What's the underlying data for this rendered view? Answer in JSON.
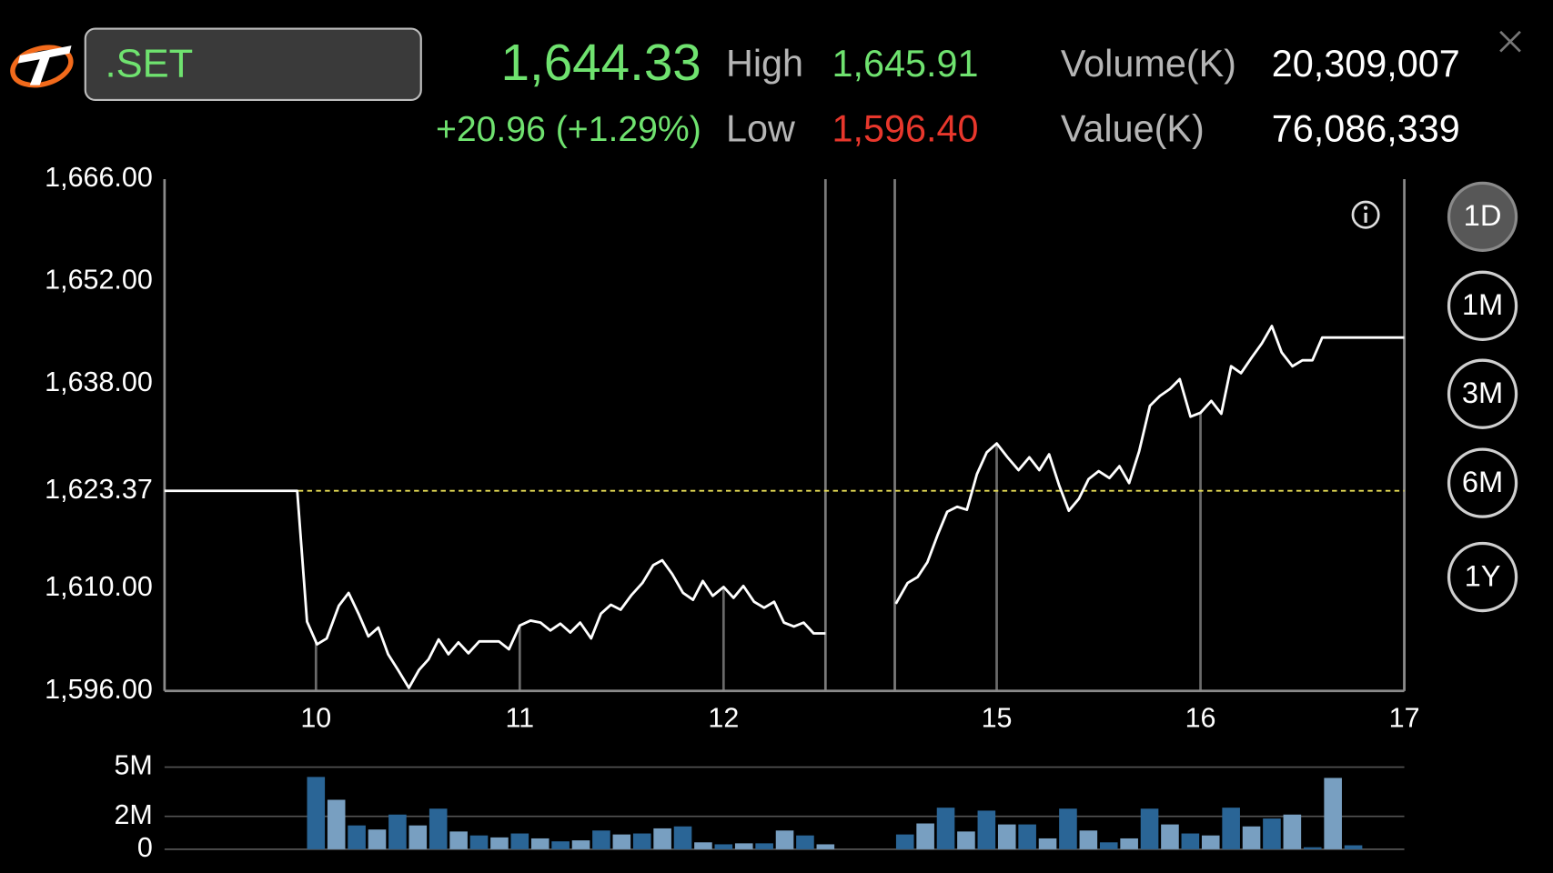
{
  "header": {
    "symbol": ".SET",
    "last": "1,644.33",
    "change": "+20.96 (+1.29%)",
    "high_label": "High",
    "high": "1,645.91",
    "low_label": "Low",
    "low": "1,596.40",
    "volume_label": "Volume(K)",
    "volume": "20,309,007",
    "value_label": "Value(K)",
    "value": "76,086,339"
  },
  "periods": {
    "options": [
      "1D",
      "1M",
      "3M",
      "6M",
      "1Y"
    ],
    "selected": 0
  },
  "chart_data": [
    {
      "type": "line",
      "color": "#ffffff",
      "x": [
        9.257,
        9.908,
        9.956,
        10.005,
        10.053,
        10.112,
        10.16,
        10.209,
        10.257,
        10.306,
        10.354,
        10.403,
        10.456,
        10.505,
        10.553,
        10.602,
        10.65,
        10.699,
        10.748,
        10.801,
        10.898,
        10.947,
        11.0,
        11.053,
        11.102,
        11.15,
        11.199,
        11.248,
        11.296,
        11.35,
        11.398,
        11.447,
        11.495,
        11.549,
        11.602,
        11.655,
        11.699,
        11.748,
        11.801,
        11.85,
        11.898,
        11.947,
        12.0,
        12.049,
        12.097,
        12.15,
        12.199,
        12.248,
        12.296,
        12.345,
        12.393,
        12.442,
        12.5,
        null,
        14.505,
        14.563,
        14.612,
        14.66,
        14.709,
        14.757,
        14.806,
        14.854,
        14.903,
        14.951,
        15.0,
        15.053,
        15.107,
        15.16,
        15.209,
        15.257,
        15.306,
        15.354,
        15.403,
        15.451,
        15.5,
        15.553,
        15.602,
        15.65,
        15.699,
        15.752,
        15.801,
        15.85,
        15.898,
        15.951,
        16.0,
        16.053,
        16.102,
        16.15,
        16.199,
        16.252,
        16.301,
        16.35,
        16.398,
        16.451,
        16.5,
        16.549,
        16.597,
        17
      ],
      "values": [
        1623.37,
        1623.37,
        1605.48,
        1602.37,
        1603.18,
        1607.65,
        1609.41,
        1606.56,
        1603.45,
        1604.67,
        1601.01,
        1598.85,
        1596.4,
        1598.85,
        1600.33,
        1603.04,
        1601.01,
        1602.64,
        1601.15,
        1602.77,
        1602.77,
        1601.69,
        1604.94,
        1605.61,
        1605.34,
        1604.26,
        1605.2,
        1603.99,
        1605.34,
        1603.18,
        1606.56,
        1607.78,
        1607.1,
        1609.14,
        1610.76,
        1613.2,
        1613.87,
        1611.98,
        1609.41,
        1608.46,
        1611.03,
        1609.0,
        1610.22,
        1608.73,
        1610.35,
        1608.19,
        1607.38,
        1608.19,
        1605.34,
        1604.8,
        1605.34,
        1603.86,
        1603.86,
        null,
        1607.92,
        1610.76,
        1611.57,
        1613.6,
        1617.26,
        1620.51,
        1621.19,
        1620.78,
        1625.65,
        1628.63,
        1629.85,
        1627.96,
        1626.2,
        1627.96,
        1626.2,
        1628.36,
        1624.16,
        1620.64,
        1622.27,
        1624.98,
        1626.06,
        1625.11,
        1626.74,
        1624.43,
        1628.77,
        1635.0,
        1636.35,
        1637.3,
        1638.65,
        1633.51,
        1634.05,
        1635.67,
        1633.91,
        1640.41,
        1639.46,
        1641.63,
        1643.53,
        1645.91,
        1642.31,
        1640.41,
        1641.22,
        1641.22,
        1644.33,
        1644.33
      ],
      "xlim": [
        9.257,
        17
      ],
      "xticks": [
        10,
        11,
        12,
        15,
        16,
        17
      ],
      "breaks": [
        [
          12.5,
          14.5
        ]
      ],
      "ylim": [
        1596,
        1666
      ],
      "yticks": [
        {
          "value": 1596,
          "label": "1,596.00"
        },
        {
          "value": 1610,
          "label": "1,610.00"
        },
        {
          "value": 1623.37,
          "label": "1,623.37"
        },
        {
          "value": 1638,
          "label": "1,638.00"
        },
        {
          "value": 1652,
          "label": "1,652.00"
        },
        {
          "value": 1666,
          "label": "1,666.00"
        }
      ],
      "reference_line": 1623.37,
      "reference_color": "#e6dc55"
    },
    {
      "type": "bar",
      "colors": [
        "#2a6596",
        "#789fc1"
      ],
      "x": [
        10.0,
        10.1,
        10.2,
        10.3,
        10.4,
        10.5,
        10.6,
        10.7,
        10.8,
        10.9,
        11.0,
        11.1,
        11.2,
        11.3,
        11.4,
        11.5,
        11.6,
        11.7,
        11.8,
        11.9,
        12.0,
        12.1,
        12.2,
        12.3,
        12.4,
        12.5,
        14.55,
        14.65,
        14.75,
        14.85,
        14.95,
        15.05,
        15.15,
        15.25,
        15.35,
        15.45,
        15.55,
        15.65,
        15.75,
        15.85,
        15.95,
        16.05,
        16.15,
        16.25,
        16.35,
        16.45,
        16.55,
        16.65,
        16.75
      ],
      "values": [
        4.4,
        3.01,
        1.45,
        1.2,
        2.11,
        1.45,
        2.47,
        1.08,
        0.84,
        0.72,
        0.96,
        0.66,
        0.48,
        0.54,
        1.14,
        0.9,
        0.96,
        1.27,
        1.39,
        0.42,
        0.3,
        0.36,
        0.36,
        1.14,
        0.84,
        0.3,
        0.9,
        1.57,
        2.53,
        1.08,
        2.35,
        1.51,
        1.51,
        0.66,
        2.47,
        1.14,
        0.42,
        0.66,
        2.47,
        1.51,
        0.96,
        0.84,
        2.53,
        1.39,
        1.87,
        2.11,
        0.12,
        4.34,
        0.24
      ],
      "xlim": [
        9.257,
        17
      ],
      "breaks": [
        [
          12.5,
          14.5
        ]
      ],
      "ylim": [
        0,
        5
      ],
      "yticks": [
        0,
        {
          "value": 2,
          "label": "2M"
        },
        {
          "value": 5,
          "label": "5M"
        }
      ]
    }
  ]
}
